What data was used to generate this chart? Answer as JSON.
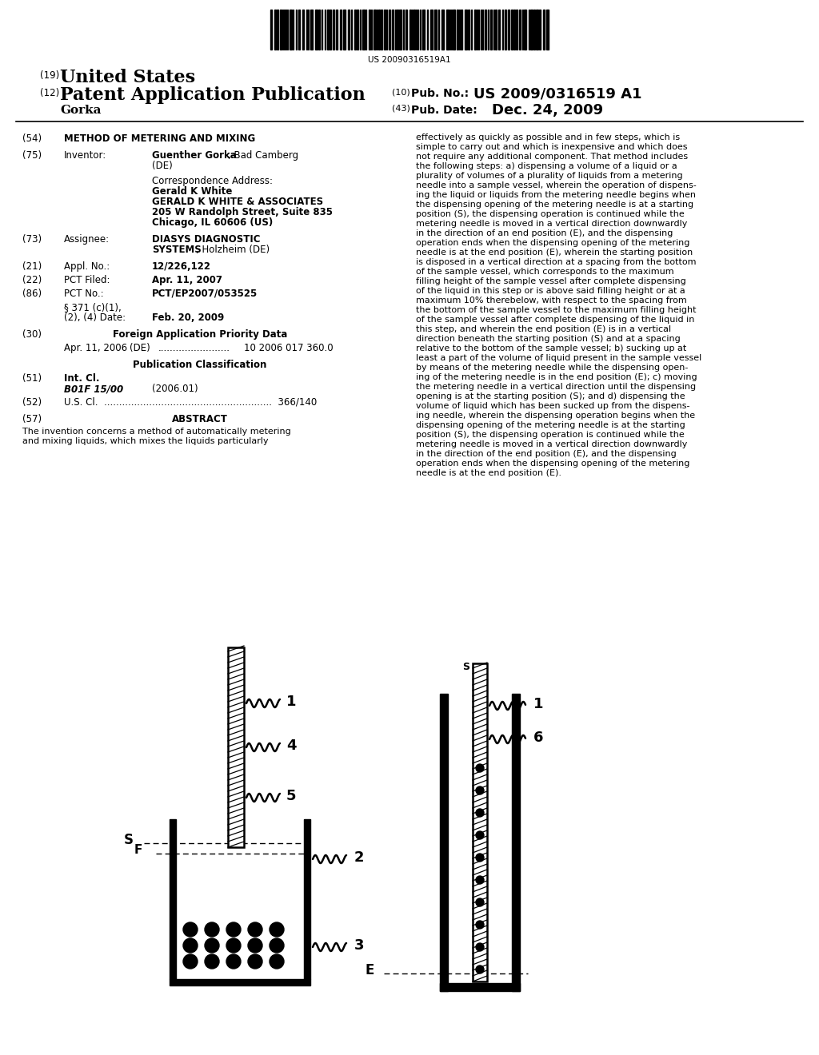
{
  "background_color": "#ffffff",
  "barcode_text": "US 20090316519A1",
  "right_col_abstract": "effectively as quickly as possible and in few steps, which is\nsimple to carry out and which is inexpensive and which does\nnot require any additional component. That method includes\nthe following steps: a) dispensing a volume of a liquid or a\nplurality of volumes of a plurality of liquids from a metering\nneedle into a sample vessel, wherein the operation of dispens-\ning the liquid or liquids from the metering needle begins when\nthe dispensing opening of the metering needle is at a starting\nposition (S), the dispensing operation is continued while the\nmetering needle is moved in a vertical direction downwardly\nin the direction of an end position (E), and the dispensing\noperation ends when the dispensing opening of the metering\nneedle is at the end position (E), wherein the starting position\nis disposed in a vertical direction at a spacing from the bottom\nof the sample vessel, which corresponds to the maximum\nfilling height of the sample vessel after complete dispensing\nof the liquid in this step or is above said filling height or at a\nmaximum 10% therebelow, with respect to the spacing from\nthe bottom of the sample vessel to the maximum filling height\nof the sample vessel after complete dispensing of the liquid in\nthis step, and wherein the end position (E) is in a vertical\ndirection beneath the starting position (S) and at a spacing\nrelative to the bottom of the sample vessel; b) sucking up at\nleast a part of the volume of liquid present in the sample vessel\nby means of the metering needle while the dispensing open-\ning of the metering needle is in the end position (E); c) moving\nthe metering needle in a vertical direction until the dispensing\nopening is at the starting position (S); and d) dispensing the\nvolume of liquid which has been sucked up from the dispens-\ning needle, wherein the dispensing operation begins when the\ndispensing opening of the metering needle is at the starting\nposition (S), the dispensing operation is continued while the\nmetering needle is moved in a vertical direction downwardly\nin the direction of the end position (E), and the dispensing\noperation ends when the dispensing opening of the metering\nneedle is at the end position (E)."
}
